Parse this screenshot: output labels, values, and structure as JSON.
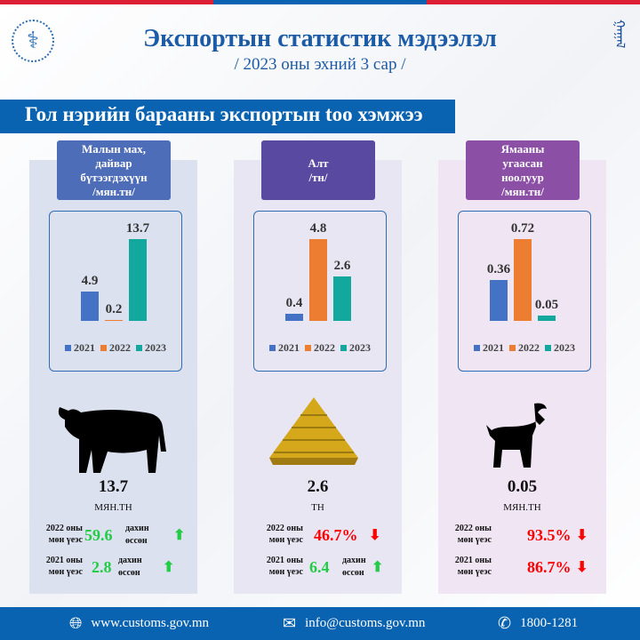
{
  "header": {
    "title": "Экспортын статистик мэдээлэл",
    "subtitle": "/ 2023 оны эхний 3 сар /"
  },
  "banner": "Гол нэрийн барааны экспортын too хэмжээ",
  "colors": {
    "y2021": "#4472c4",
    "y2022": "#ed7d31",
    "y2023": "#13a89e",
    "up": "#22cc44",
    "down": "#ff0000"
  },
  "legend": [
    "2021",
    "2022",
    "2023"
  ],
  "products": [
    {
      "label_lines": [
        "Малын мах,",
        "дайвар",
        "бүтээгдэхүүн",
        "/мян.тн/"
      ],
      "values": [
        4.9,
        0.2,
        13.7
      ],
      "value_labels": [
        "4.9",
        "0.2",
        "13.7"
      ],
      "total": "13.7",
      "unit": "МЯН.ТН",
      "icon": "cow-icon",
      "comparisons": [
        {
          "year_label": "2022 оны",
          "sub": "мөн үеэс",
          "value": "59.6",
          "suffix1": "дахин",
          "suffix2": "өссөн",
          "direction": "up"
        },
        {
          "year_label": "2021 оны",
          "sub": "мөн үеэс",
          "value": "2.8",
          "suffix1": "дахин",
          "suffix2": "өссөн",
          "direction": "up"
        }
      ]
    },
    {
      "label_lines": [
        "Алт",
        "/тн/"
      ],
      "values": [
        0.4,
        4.8,
        2.6
      ],
      "value_labels": [
        "0.4",
        "4.8",
        "2.6"
      ],
      "total": "2.6",
      "unit": "ТН",
      "icon": "gold-bars-icon",
      "comparisons": [
        {
          "year_label": "2022 оны",
          "sub": "мөн үеэс",
          "value": "46.7%",
          "direction": "down"
        },
        {
          "year_label": "2021 оны",
          "sub": "мөн үеэс",
          "value": "6.4",
          "suffix1": "дахин",
          "suffix2": "өссөн",
          "direction": "up"
        }
      ]
    },
    {
      "label_lines": [
        "Ямааны",
        "угаасан",
        "ноолуур",
        "/мян.тн/"
      ],
      "values": [
        0.36,
        0.72,
        0.05
      ],
      "value_labels": [
        "0.36",
        "0.72",
        "0.05"
      ],
      "total": "0.05",
      "unit": "МЯН.ТН",
      "icon": "goat-icon",
      "comparisons": [
        {
          "year_label": "2022 оны",
          "sub": "мөн үеэс",
          "value": "93.5%",
          "direction": "down"
        },
        {
          "year_label": "2021 оны",
          "sub": "мөн үеэс",
          "value": "86.7%",
          "direction": "down"
        }
      ]
    }
  ],
  "footer": {
    "website": "www.customs.gov.mn",
    "email": "info@customs.gov.mn",
    "phone": "1800-1281"
  }
}
